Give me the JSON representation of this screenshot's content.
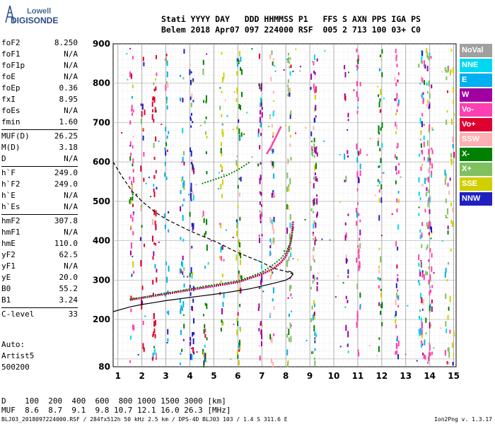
{
  "logo": {
    "line1": "Lowell",
    "line2": "DIGISONDE"
  },
  "header": {
    "line1": "Stati YYYY DAY   DDD HHMMSS P1   FFS S AXN PPS IGA PS",
    "line2": "Belem 2018 Apr07 097 224000 RSF  005 2 713 100 03+ C0"
  },
  "params": [
    {
      "k": "foF2",
      "v": "8.250"
    },
    {
      "k": "foF1",
      "v": "N/A"
    },
    {
      "k": "foF1p",
      "v": "N/A"
    },
    {
      "k": "foE",
      "v": "N/A"
    },
    {
      "k": "foEp",
      "v": "0.36"
    },
    {
      "k": "fxI",
      "v": "8.95"
    },
    {
      "k": "foEs",
      "v": "N/A"
    },
    {
      "k": "fmin",
      "v": "1.60"
    },
    {
      "k": "MUF(D)",
      "v": "26.25"
    },
    {
      "k": "M(D)",
      "v": "3.18"
    },
    {
      "k": "D",
      "v": "N/A"
    },
    {
      "k": "h`F",
      "v": "249.0"
    },
    {
      "k": "h`F2",
      "v": "249.0"
    },
    {
      "k": "h`E",
      "v": "N/A"
    },
    {
      "k": "h`Es",
      "v": "N/A"
    },
    {
      "k": "hmF2",
      "v": "307.8"
    },
    {
      "k": "hmF1",
      "v": "N/A"
    },
    {
      "k": "hmE",
      "v": "110.0"
    },
    {
      "k": "yF2",
      "v": "62.5"
    },
    {
      "k": "yF1",
      "v": "N/A"
    },
    {
      "k": "yE",
      "v": "20.0"
    },
    {
      "k": "B0",
      "v": "55.2"
    },
    {
      "k": "B1",
      "v": "3.24"
    },
    {
      "k": "C-level",
      "v": "33"
    }
  ],
  "autoscale": {
    "l1": "Auto:",
    "l2": "Artist5",
    "l3": "500200"
  },
  "legend": [
    {
      "label": "NoVal",
      "color": "#a0a0a0"
    },
    {
      "label": "NNE",
      "color": "#00d8f0"
    },
    {
      "label": "E",
      "color": "#00b0f0"
    },
    {
      "label": "W",
      "color": "#a000a0"
    },
    {
      "label": "Vo-",
      "color": "#ff40b0"
    },
    {
      "label": "Vo+",
      "color": "#e00030"
    },
    {
      "label": "SSW",
      "color": "#ffb0b0"
    },
    {
      "label": "X-",
      "color": "#008000"
    },
    {
      "label": "X+",
      "color": "#80c060"
    },
    {
      "label": "SSE",
      "color": "#d0d000"
    },
    {
      "label": "NNW",
      "color": "#2020c0"
    }
  ],
  "muf_table": {
    "line1": "D    100  200  400  600  800 1000 1500 3000 [km]",
    "line2": "MUF  8.6  8.7  9.1  9.8 10.7 12.1 16.0 26.3 [MHz]"
  },
  "footer": "BLJ03_2018097224000.RSF / 284fx512h 50 kHz 2.5 km / DPS-4D BLJ03 103 / 1.4 S 311.6 E",
  "version": "Ion2Png v. 1.3.17",
  "chart_data": {
    "type": "scatter",
    "title": "",
    "xlabel": "",
    "ylabel": "",
    "xlim": [
      0.8,
      15.1
    ],
    "ylim": [
      80,
      900
    ],
    "xticks": [
      "1",
      "2",
      "3",
      "4",
      "5",
      "6",
      "7",
      "8",
      "9",
      "10",
      "11",
      "12",
      "13",
      "14",
      "15"
    ],
    "yticks": [
      "80",
      "200",
      "300",
      "400",
      "500",
      "600",
      "700",
      "800",
      "900"
    ],
    "grid": true,
    "series": [
      {
        "x": [
          1.5,
          2.0,
          2.5,
          3.0,
          3.5,
          4.0,
          4.5,
          5.0,
          5.5,
          6.0,
          6.5,
          7.0,
          7.5,
          7.8,
          8.0,
          8.1,
          8.2,
          8.25,
          8.3
        ],
        "y": [
          250,
          255,
          260,
          265,
          270,
          275,
          280,
          285,
          290,
          295,
          305,
          315,
          330,
          345,
          360,
          375,
          395,
          415,
          450
        ]
      },
      {
        "x": [
          1.5,
          2.0,
          2.5,
          3.0,
          3.5,
          4.0,
          4.5,
          5.0,
          5.5,
          6.0,
          6.5,
          7.0,
          7.5,
          7.8,
          8.0,
          8.2,
          8.3
        ],
        "y": [
          252,
          256,
          262,
          267,
          272,
          278,
          283,
          288,
          293,
          298,
          308,
          320,
          340,
          355,
          370,
          395,
          430
        ]
      },
      {
        "x": [
          4.5,
          5.0,
          5.5,
          6.0,
          6.5
        ],
        "y": [
          545,
          555,
          565,
          580,
          600
        ]
      },
      {
        "x": [
          7.2,
          7.4,
          7.6,
          7.8
        ],
        "y": [
          620,
          640,
          665,
          690
        ]
      },
      {
        "x": [
          0.8,
          1.5,
          2.0,
          2.5,
          3.0,
          3.5,
          4.0,
          4.5,
          5.0,
          5.5,
          6.0,
          6.5,
          7.0,
          7.5,
          8.0,
          8.2,
          8.3,
          8.25,
          8.1
        ],
        "y": [
          220,
          232,
          238,
          243,
          248,
          252,
          256,
          260,
          264,
          268,
          273,
          278,
          285,
          292,
          300,
          307,
          315,
          320,
          323
        ]
      },
      {
        "x": [
          0.8,
          1.2,
          1.6,
          2.0,
          2.5,
          3.0,
          3.5,
          4.0,
          5.0,
          6.0,
          7.0,
          7.5,
          8.0,
          8.2,
          8.3
        ],
        "y": [
          600,
          560,
          525,
          500,
          475,
          455,
          440,
          425,
          400,
          370,
          345,
          330,
          322,
          318,
          315
        ]
      }
    ]
  }
}
